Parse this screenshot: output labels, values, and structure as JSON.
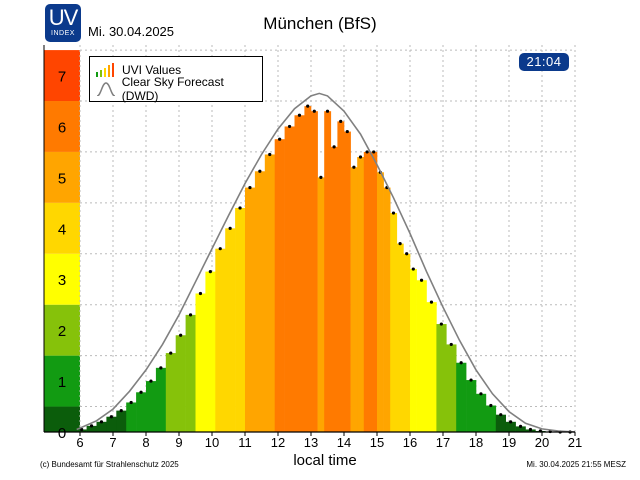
{
  "header": {
    "logo_big": "UV",
    "logo_small": "INDEX",
    "date": "Mi. 30.04.2025",
    "title": "München (BfS)",
    "time_badge": "21:04"
  },
  "legend": {
    "uvi_label": "UVI Values",
    "forecast_label": "Clear Sky Forecast (DWD)"
  },
  "footer": {
    "left": "(c) Bundesamt für Strahlenschutz 2025",
    "right": "Mi. 30.04.2025  21:55  MESZ"
  },
  "chart_data": {
    "type": "bar",
    "xlabel": "local time",
    "ylabel": "",
    "xlim": [
      5,
      21
    ],
    "ylim": [
      0,
      7.6
    ],
    "x_ticks": [
      6,
      7,
      8,
      9,
      10,
      11,
      12,
      13,
      14,
      15,
      16,
      17,
      18,
      19,
      20,
      21
    ],
    "grid": true,
    "legend_position": "top-left",
    "uv_scale": [
      {
        "level": 0,
        "color": "#0b5d0b"
      },
      {
        "level": 1,
        "color": "#129b12"
      },
      {
        "level": 2,
        "color": "#86c20a"
      },
      {
        "level": 3,
        "color": "#ffff00"
      },
      {
        "level": 4,
        "color": "#ffd700"
      },
      {
        "level": 5,
        "color": "#ffa500"
      },
      {
        "level": 6,
        "color": "#ff7a00"
      },
      {
        "level": 7,
        "color": "#ff4500"
      }
    ],
    "series": [
      {
        "name": "UVI Values",
        "x": [
          5.9,
          6.2,
          6.5,
          6.8,
          7.1,
          7.4,
          7.7,
          8.0,
          8.3,
          8.6,
          8.9,
          9.2,
          9.5,
          9.8,
          10.1,
          10.4,
          10.7,
          11.0,
          11.3,
          11.6,
          11.9,
          12.2,
          12.5,
          12.8,
          13.0,
          13.2,
          13.4,
          13.6,
          13.8,
          14.0,
          14.2,
          14.4,
          14.6,
          14.8,
          15.0,
          15.2,
          15.4,
          15.6,
          15.8,
          16.0,
          16.2,
          16.5,
          16.8,
          17.1,
          17.4,
          17.7,
          18.0,
          18.3,
          18.6,
          18.9,
          19.2,
          19.5,
          19.8,
          20.1,
          20.4,
          20.7
        ],
        "values": [
          0.05,
          0.12,
          0.2,
          0.3,
          0.42,
          0.58,
          0.78,
          1.0,
          1.26,
          1.55,
          1.9,
          2.3,
          2.72,
          3.15,
          3.6,
          4.0,
          4.4,
          4.8,
          5.12,
          5.45,
          5.75,
          6.0,
          6.22,
          6.4,
          6.3,
          5.0,
          6.3,
          5.6,
          6.1,
          5.9,
          5.2,
          5.4,
          5.5,
          5.5,
          5.1,
          4.8,
          4.3,
          3.7,
          3.5,
          3.2,
          2.98,
          2.55,
          2.12,
          1.72,
          1.36,
          1.02,
          0.75,
          0.52,
          0.34,
          0.2,
          0.11,
          0.05,
          0.02,
          0.01,
          0.0,
          0.0
        ]
      },
      {
        "name": "Clear Sky Forecast (DWD)",
        "x": [
          5.9,
          6.5,
          7.0,
          7.5,
          8.0,
          8.5,
          9.0,
          9.5,
          10.0,
          10.5,
          11.0,
          11.5,
          12.0,
          12.5,
          13.0,
          13.25,
          13.5,
          14.0,
          14.5,
          15.0,
          15.5,
          16.0,
          16.5,
          17.0,
          17.5,
          18.0,
          18.5,
          19.0,
          19.5,
          20.0,
          20.5,
          21.0
        ],
        "values": [
          0.05,
          0.22,
          0.45,
          0.8,
          1.22,
          1.72,
          2.3,
          2.95,
          3.6,
          4.25,
          4.88,
          5.45,
          5.95,
          6.35,
          6.6,
          6.65,
          6.6,
          6.3,
          5.85,
          5.25,
          4.6,
          3.9,
          3.15,
          2.45,
          1.8,
          1.22,
          0.75,
          0.4,
          0.17,
          0.06,
          0.02,
          0.0
        ]
      }
    ]
  }
}
